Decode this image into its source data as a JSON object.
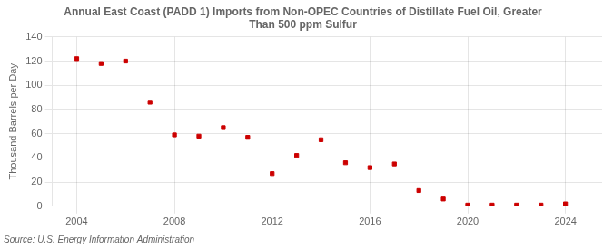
{
  "chart_data": {
    "type": "scatter",
    "title": "Annual East Coast (PADD 1) Imports from Non-OPEC Countries of Distillate Fuel Oil, Greater\nThan 500 ppm Sulfur",
    "ylabel": "Thousand Barrels per Day",
    "annotation": "Source: U.S. Energy Information Administration",
    "x": [
      2004,
      2005,
      2006,
      2007,
      2008,
      2009,
      2010,
      2011,
      2012,
      2013,
      2014,
      2015,
      2016,
      2017,
      2018,
      2019,
      2020,
      2021,
      2022,
      2023,
      2024
    ],
    "values": [
      122,
      118,
      120,
      86,
      59,
      58,
      65,
      57,
      27,
      42,
      55,
      36,
      32,
      35,
      13,
      6,
      1,
      1,
      1,
      1,
      2
    ],
    "color": "#cc0000",
    "marker": "square",
    "xlim": [
      2003.0,
      2025.5
    ],
    "xticks": [
      2004,
      2008,
      2012,
      2016,
      2020,
      2024
    ],
    "ylim": [
      0,
      140
    ],
    "yticks": [
      0,
      20,
      40,
      60,
      80,
      100,
      120,
      140
    ],
    "grid": true
  }
}
